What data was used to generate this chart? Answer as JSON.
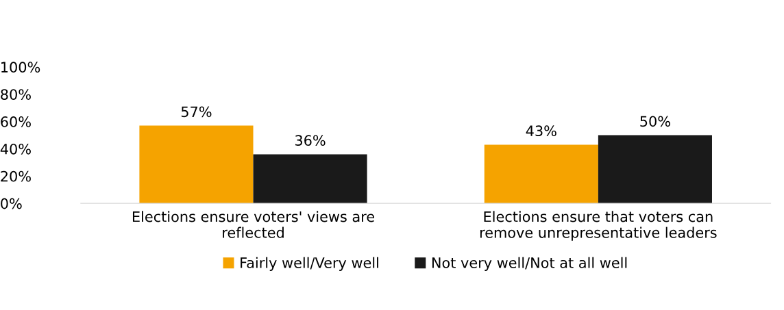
{
  "chart_data": {
    "type": "bar",
    "categories": [
      "Elections ensure voters' views are reflected",
      "Elections ensure that voters can remove unrepresentative leaders"
    ],
    "series": [
      {
        "name": "Fairly well/Very well",
        "color": "#f5a300",
        "values": [
          57,
          43
        ]
      },
      {
        "name": "Not very well/Not at all well",
        "color": "#1a1a1a",
        "values": [
          36,
          50
        ]
      }
    ],
    "ylim": [
      0,
      100
    ],
    "yticks": [
      {
        "value": 0,
        "label": "0%"
      },
      {
        "value": 20,
        "label": "20%"
      },
      {
        "value": 40,
        "label": "40%"
      },
      {
        "value": 60,
        "label": "60%"
      },
      {
        "value": 80,
        "label": "80%"
      },
      {
        "value": 100,
        "label": "100%"
      }
    ],
    "value_labels": [
      [
        "57%",
        "43%"
      ],
      [
        "36%",
        "50%"
      ]
    ],
    "grid": false,
    "legend": "bottom"
  }
}
